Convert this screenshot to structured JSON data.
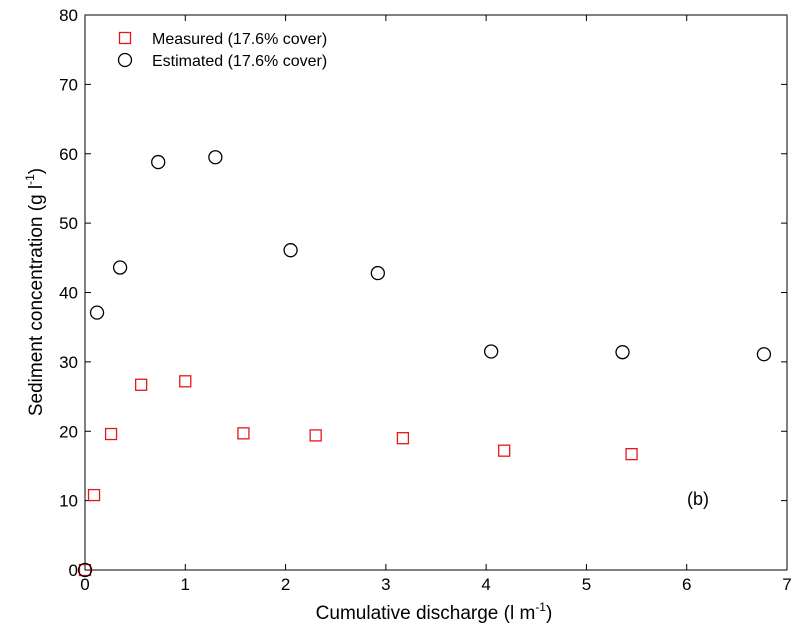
{
  "chart_data": {
    "type": "scatter",
    "title": "",
    "xlabel": "Cumulative discharge (l m",
    "xlabel_sup": "-1",
    "xlabel_end": ")",
    "ylabel": "Sediment concentration (g l",
    "ylabel_sup": "-1",
    "ylabel_end": ")",
    "xlim": [
      0,
      7
    ],
    "ylim": [
      0,
      80
    ],
    "xticks": [
      0,
      1,
      2,
      3,
      4,
      5,
      6,
      7
    ],
    "yticks": [
      0,
      10,
      20,
      30,
      40,
      50,
      60,
      70,
      80
    ],
    "grid": false,
    "legend_position": "top-left",
    "annotation": "(b)",
    "series": [
      {
        "name": "Measured (17.6% cover)",
        "marker": "square",
        "color": "#e8141c",
        "x": [
          0.0,
          0.09,
          0.26,
          0.56,
          1.0,
          1.58,
          2.3,
          3.17,
          4.18,
          5.45
        ],
        "y": [
          0.0,
          10.8,
          19.6,
          26.7,
          27.2,
          19.7,
          19.4,
          19.0,
          17.2,
          16.7
        ]
      },
      {
        "name": "Estimated (17.6% cover)",
        "marker": "circle",
        "color": "#000000",
        "x": [
          0.0,
          0.12,
          0.35,
          0.73,
          1.3,
          2.05,
          2.92,
          4.05,
          5.36,
          6.77
        ],
        "y": [
          0.0,
          37.1,
          43.6,
          58.8,
          59.5,
          46.1,
          42.8,
          31.5,
          31.4,
          31.1
        ]
      }
    ]
  }
}
